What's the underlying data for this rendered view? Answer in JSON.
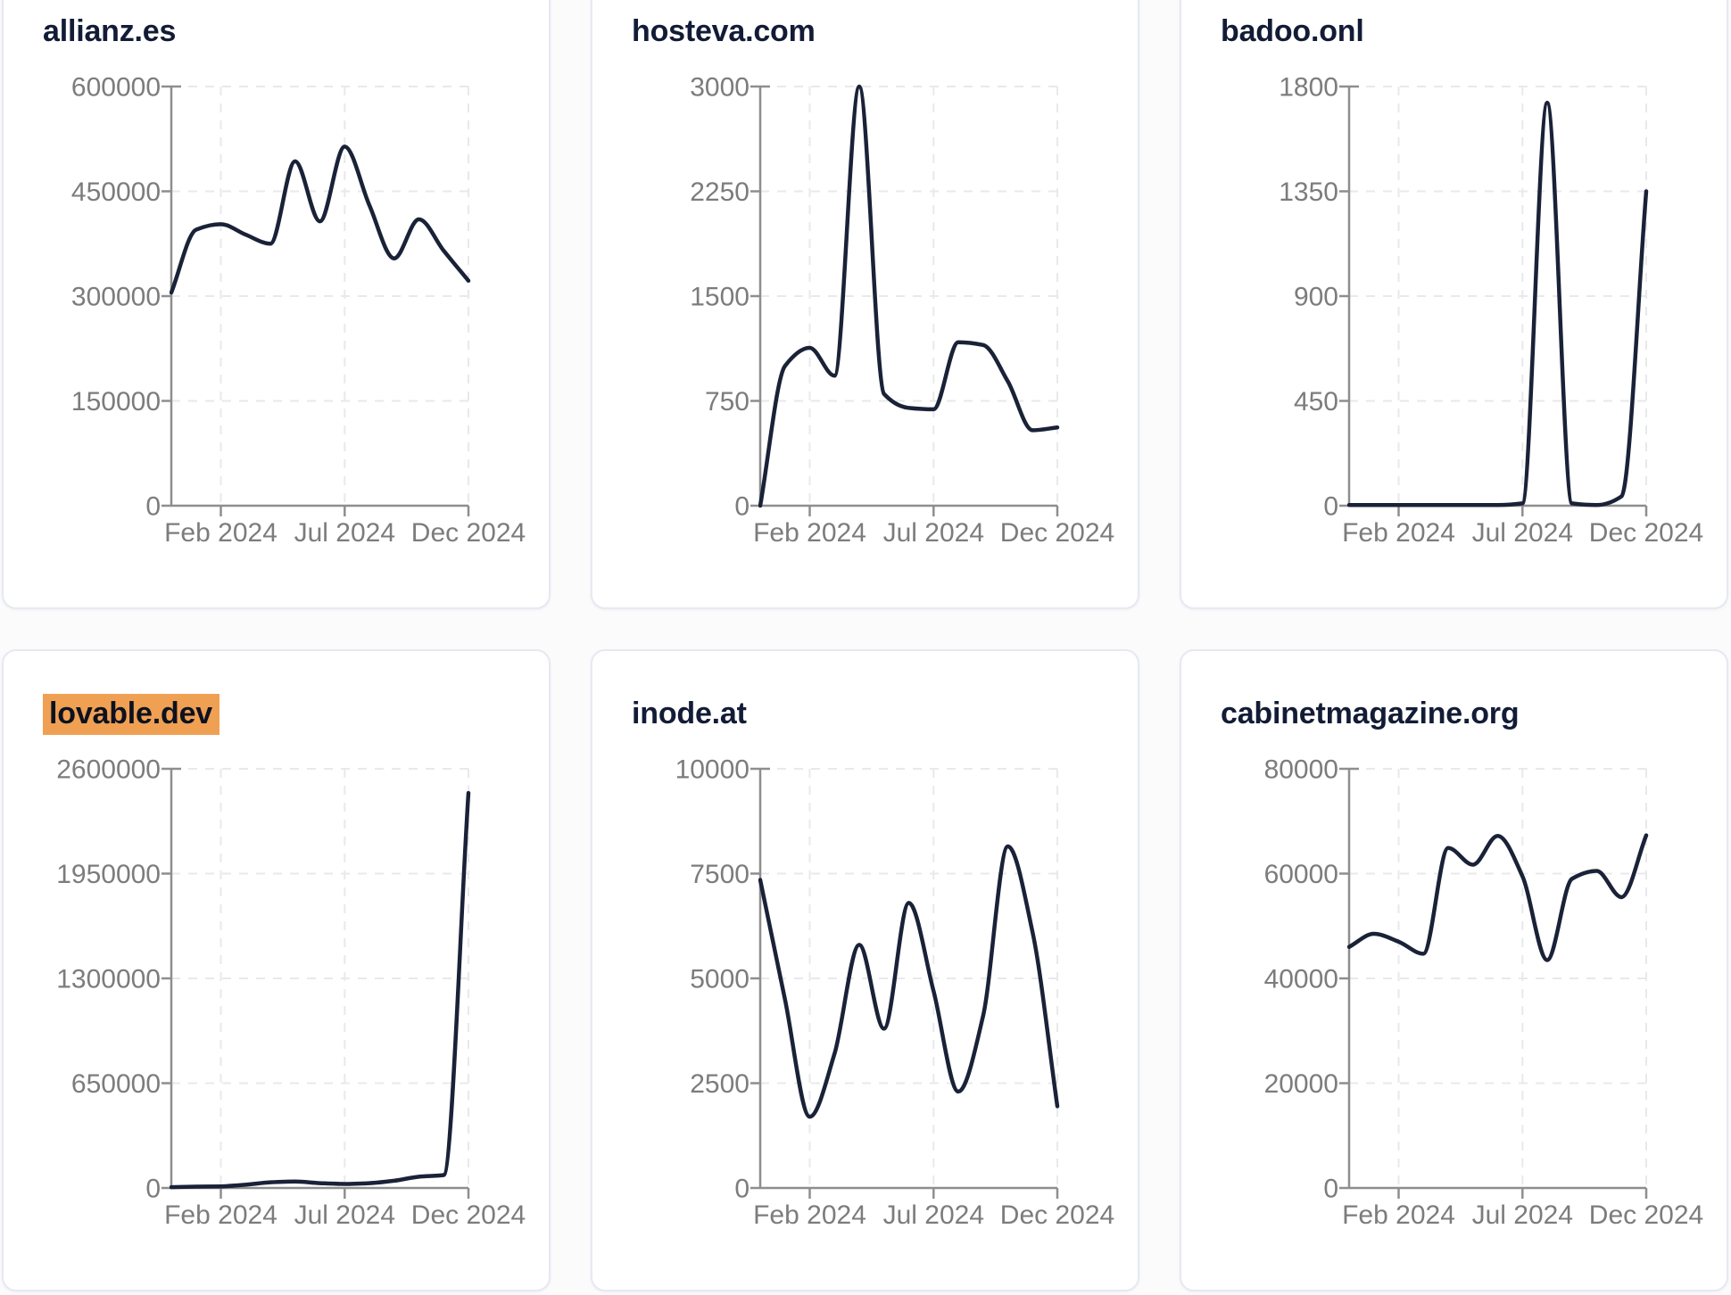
{
  "ui": {
    "colors": {
      "line": "#1a2238",
      "title_text": "#131c36",
      "axis": "#8e8e8e",
      "tick_text": "#7c7c7c",
      "gridline": "#e8e9ec",
      "card_background": "#ffffff",
      "card_border": "#e6e9f1",
      "page_background": "#fbfbfc",
      "highlight_background": "#f0a053",
      "highlight_text": "#0c1220"
    }
  },
  "chart_data": [
    {
      "type": "line",
      "title": "allianz.es",
      "highlighted": false,
      "ylim": [
        0,
        600000
      ],
      "y_ticks": [
        0,
        150000,
        300000,
        450000,
        600000
      ],
      "x_tick_labels": [
        "Feb 2024",
        "Jul 2024",
        "Dec 2024"
      ],
      "x_tick_indices": [
        2,
        7,
        12
      ],
      "grid": "dashed",
      "legend": "none",
      "x": [
        "Dec 2023",
        "Jan 2024",
        "Feb 2024",
        "Mar 2024",
        "Apr 2024",
        "May 2024",
        "Jun 2024",
        "Jul 2024",
        "Aug 2024",
        "Sep 2024",
        "Oct 2024",
        "Nov 2024",
        "Dec 2024"
      ],
      "values": [
        305000,
        395000,
        403000,
        388000,
        375000,
        493000,
        407000,
        514000,
        430000,
        354000,
        410000,
        365000,
        322000
      ]
    },
    {
      "type": "line",
      "title": "hosteva.com",
      "highlighted": false,
      "ylim": [
        0,
        3000
      ],
      "y_ticks": [
        0,
        750,
        1500,
        2250,
        3000
      ],
      "x_tick_labels": [
        "Feb 2024",
        "Jul 2024",
        "Dec 2024"
      ],
      "x_tick_indices": [
        2,
        7,
        12
      ],
      "grid": "dashed",
      "legend": "none",
      "x": [
        "Dec 2023",
        "Jan 2024",
        "Feb 2024",
        "Mar 2024",
        "Apr 2024",
        "May 2024",
        "Jun 2024",
        "Jul 2024",
        "Aug 2024",
        "Sep 2024",
        "Oct 2024",
        "Nov 2024",
        "Dec 2024"
      ],
      "values": [
        0,
        1000,
        1130,
        930,
        3000,
        800,
        700,
        690,
        1170,
        1150,
        890,
        540,
        560
      ]
    },
    {
      "type": "line",
      "title": "badoo.onl",
      "highlighted": false,
      "ylim": [
        0,
        1800
      ],
      "y_ticks": [
        0,
        450,
        900,
        1350,
        1800
      ],
      "x_tick_labels": [
        "Feb 2024",
        "Jul 2024",
        "Dec 2024"
      ],
      "x_tick_indices": [
        2,
        7,
        12
      ],
      "grid": "dashed",
      "legend": "none",
      "x": [
        "Dec 2023",
        "Jan 2024",
        "Feb 2024",
        "Mar 2024",
        "Apr 2024",
        "May 2024",
        "Jun 2024",
        "Jul 2024",
        "Aug 2024",
        "Sep 2024",
        "Oct 2024",
        "Nov 2024",
        "Dec 2024"
      ],
      "values": [
        3,
        3,
        3,
        3,
        3,
        3,
        3,
        10,
        1730,
        10,
        3,
        40,
        1350
      ]
    },
    {
      "type": "line",
      "title": "lovable.dev",
      "highlighted": true,
      "ylim": [
        0,
        2600000
      ],
      "y_ticks": [
        0,
        650000,
        1300000,
        1950000,
        2600000
      ],
      "x_tick_labels": [
        "Feb 2024",
        "Jul 2024",
        "Dec 2024"
      ],
      "x_tick_indices": [
        2,
        7,
        12
      ],
      "grid": "dashed",
      "legend": "none",
      "x": [
        "Dec 2023",
        "Jan 2024",
        "Feb 2024",
        "Mar 2024",
        "Apr 2024",
        "May 2024",
        "Jun 2024",
        "Jul 2024",
        "Aug 2024",
        "Sep 2024",
        "Oct 2024",
        "Nov 2024",
        "Dec 2024"
      ],
      "values": [
        5000,
        8000,
        10000,
        20000,
        35000,
        40000,
        30000,
        25000,
        30000,
        45000,
        70000,
        80000,
        2450000
      ]
    },
    {
      "type": "line",
      "title": "inode.at",
      "highlighted": false,
      "ylim": [
        0,
        10000
      ],
      "y_ticks": [
        0,
        2500,
        5000,
        7500,
        10000
      ],
      "x_tick_labels": [
        "Feb 2024",
        "Jul 2024",
        "Dec 2024"
      ],
      "x_tick_indices": [
        2,
        7,
        12
      ],
      "grid": "dashed",
      "legend": "none",
      "x": [
        "Dec 2023",
        "Jan 2024",
        "Feb 2024",
        "Mar 2024",
        "Apr 2024",
        "May 2024",
        "Jun 2024",
        "Jul 2024",
        "Aug 2024",
        "Sep 2024",
        "Oct 2024",
        "Nov 2024",
        "Dec 2024"
      ],
      "values": [
        7350,
        4500,
        1700,
        3200,
        5800,
        3800,
        6800,
        4700,
        2300,
        4100,
        8150,
        6100,
        1950
      ]
    },
    {
      "type": "line",
      "title": "cabinetmagazine.org",
      "highlighted": false,
      "ylim": [
        0,
        80000
      ],
      "y_ticks": [
        0,
        20000,
        40000,
        60000,
        80000
      ],
      "x_tick_labels": [
        "Feb 2024",
        "Jul 2024",
        "Dec 2024"
      ],
      "x_tick_indices": [
        2,
        7,
        12
      ],
      "grid": "dashed",
      "legend": "none",
      "x": [
        "Dec 2023",
        "Jan 2024",
        "Feb 2024",
        "Mar 2024",
        "Apr 2024",
        "May 2024",
        "Jun 2024",
        "Jul 2024",
        "Aug 2024",
        "Sep 2024",
        "Oct 2024",
        "Nov 2024",
        "Dec 2024"
      ],
      "values": [
        46000,
        48500,
        47000,
        44700,
        64900,
        61700,
        67200,
        59500,
        43500,
        59000,
        60500,
        55500,
        67300
      ]
    }
  ]
}
